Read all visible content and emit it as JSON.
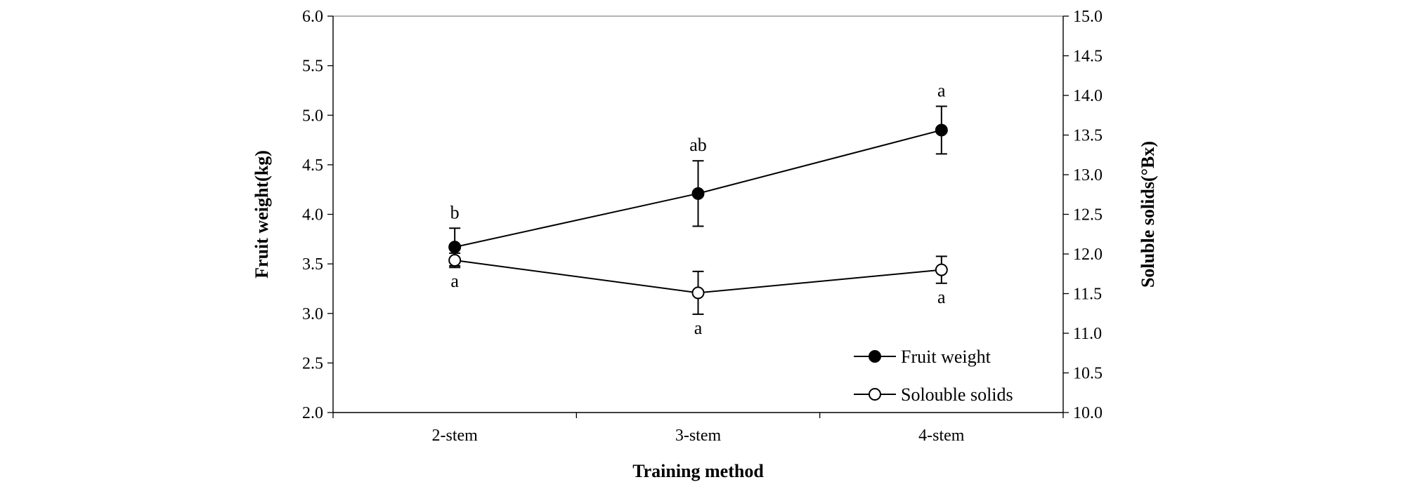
{
  "chart_data": {
    "type": "line",
    "categories": [
      "2-stem",
      "3-stem",
      "4-stem"
    ],
    "xlabel": "Training method",
    "ylabel": "Fruit weight(kg)",
    "y2label": "Soluble solids(°Bx)",
    "ylim": [
      2.0,
      6.0
    ],
    "y2lim": [
      10.0,
      15.0
    ],
    "yticks": [
      "2.0",
      "2.5",
      "3.0",
      "3.5",
      "4.0",
      "4.5",
      "5.0",
      "5.5",
      "6.0"
    ],
    "y2ticks": [
      "10.0",
      "10.5",
      "11.0",
      "11.5",
      "12.0",
      "12.5",
      "13.0",
      "13.5",
      "14.0",
      "14.5",
      "15.0"
    ],
    "grid": false,
    "legend_position": "bottom-right",
    "series": [
      {
        "name": "Fruit weight",
        "axis": "left",
        "marker": "filled-circle",
        "values": [
          3.67,
          4.21,
          4.85
        ],
        "error": [
          0.19,
          0.33,
          0.24
        ],
        "labels": [
          "b",
          "ab",
          "a"
        ],
        "label_position": "above"
      },
      {
        "name": "Solouble solids",
        "axis": "right",
        "marker": "open-circle",
        "values": [
          11.92,
          11.51,
          11.8
        ],
        "error": [
          0.09,
          0.27,
          0.17
        ],
        "labels": [
          "a",
          "a",
          "a"
        ],
        "label_position": "below"
      }
    ]
  }
}
